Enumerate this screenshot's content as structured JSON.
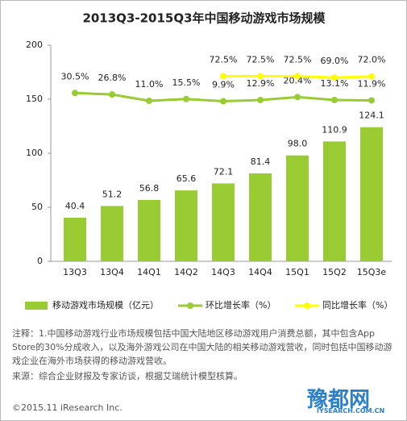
{
  "chart_data": {
    "type": "bar",
    "title": "2013Q3-2015Q3年中国移动游戏市场规模",
    "categories": [
      "13Q3",
      "13Q4",
      "14Q1",
      "14Q2",
      "14Q3",
      "14Q4",
      "15Q1",
      "15Q2",
      "15Q3e"
    ],
    "series": [
      {
        "name": "移动游戏市场规模（亿元）",
        "type": "bar",
        "color": "#99cc33",
        "values": [
          40.4,
          51.2,
          56.8,
          65.6,
          72.1,
          81.4,
          98.0,
          110.9,
          124.1
        ],
        "value_labels": [
          "40.4",
          "51.2",
          "56.8",
          "65.6",
          "72.1",
          "81.4",
          "98.0",
          "110.9",
          "124.1"
        ]
      },
      {
        "name": "环比增长率（%）",
        "type": "line",
        "axis": "y2",
        "color": "#99cc33",
        "values": [
          30.5,
          26.8,
          11.0,
          15.5,
          9.9,
          12.9,
          20.4,
          13.1,
          11.9
        ],
        "value_labels": [
          "30.5%",
          "26.8%",
          "11.0%",
          "15.5%",
          "9.9%",
          "12.9%",
          "20.4%",
          "13.1%",
          "11.9%"
        ]
      },
      {
        "name": "同比增长率（%）",
        "type": "line",
        "axis": "y2",
        "color": "#ffff00",
        "values": [
          null,
          null,
          null,
          null,
          72.5,
          72.5,
          72.5,
          69.0,
          72.0
        ],
        "value_labels": [
          null,
          null,
          null,
          null,
          "72.5%",
          "72.5%",
          "72.5%",
          "69.0%",
          "72.0%"
        ]
      }
    ],
    "ylim": [
      0,
      200
    ],
    "yticks": [
      0,
      50,
      100,
      150,
      200
    ],
    "y2lim": [
      -390,
      150
    ],
    "grid": false
  },
  "notes": {
    "note": "注释：1.中国移动游戏行业市场规模包括中国大陆地区移动游戏用户消费总额，其中包含App Store的30%分成收入，以及海外游戏公司在中国大陆的相关移动游戏营收，同时包括中国移动游戏企业在海外市场获得的移动游戏营收。",
    "source": "来源：综合企业财报及专家访谈，根据艾瑞统计模型核算。",
    "copyright": "©2015.11 iResearch Inc."
  },
  "watermark": {
    "name": "豫都网",
    "url": "IYSEARCH.COM.CN"
  }
}
